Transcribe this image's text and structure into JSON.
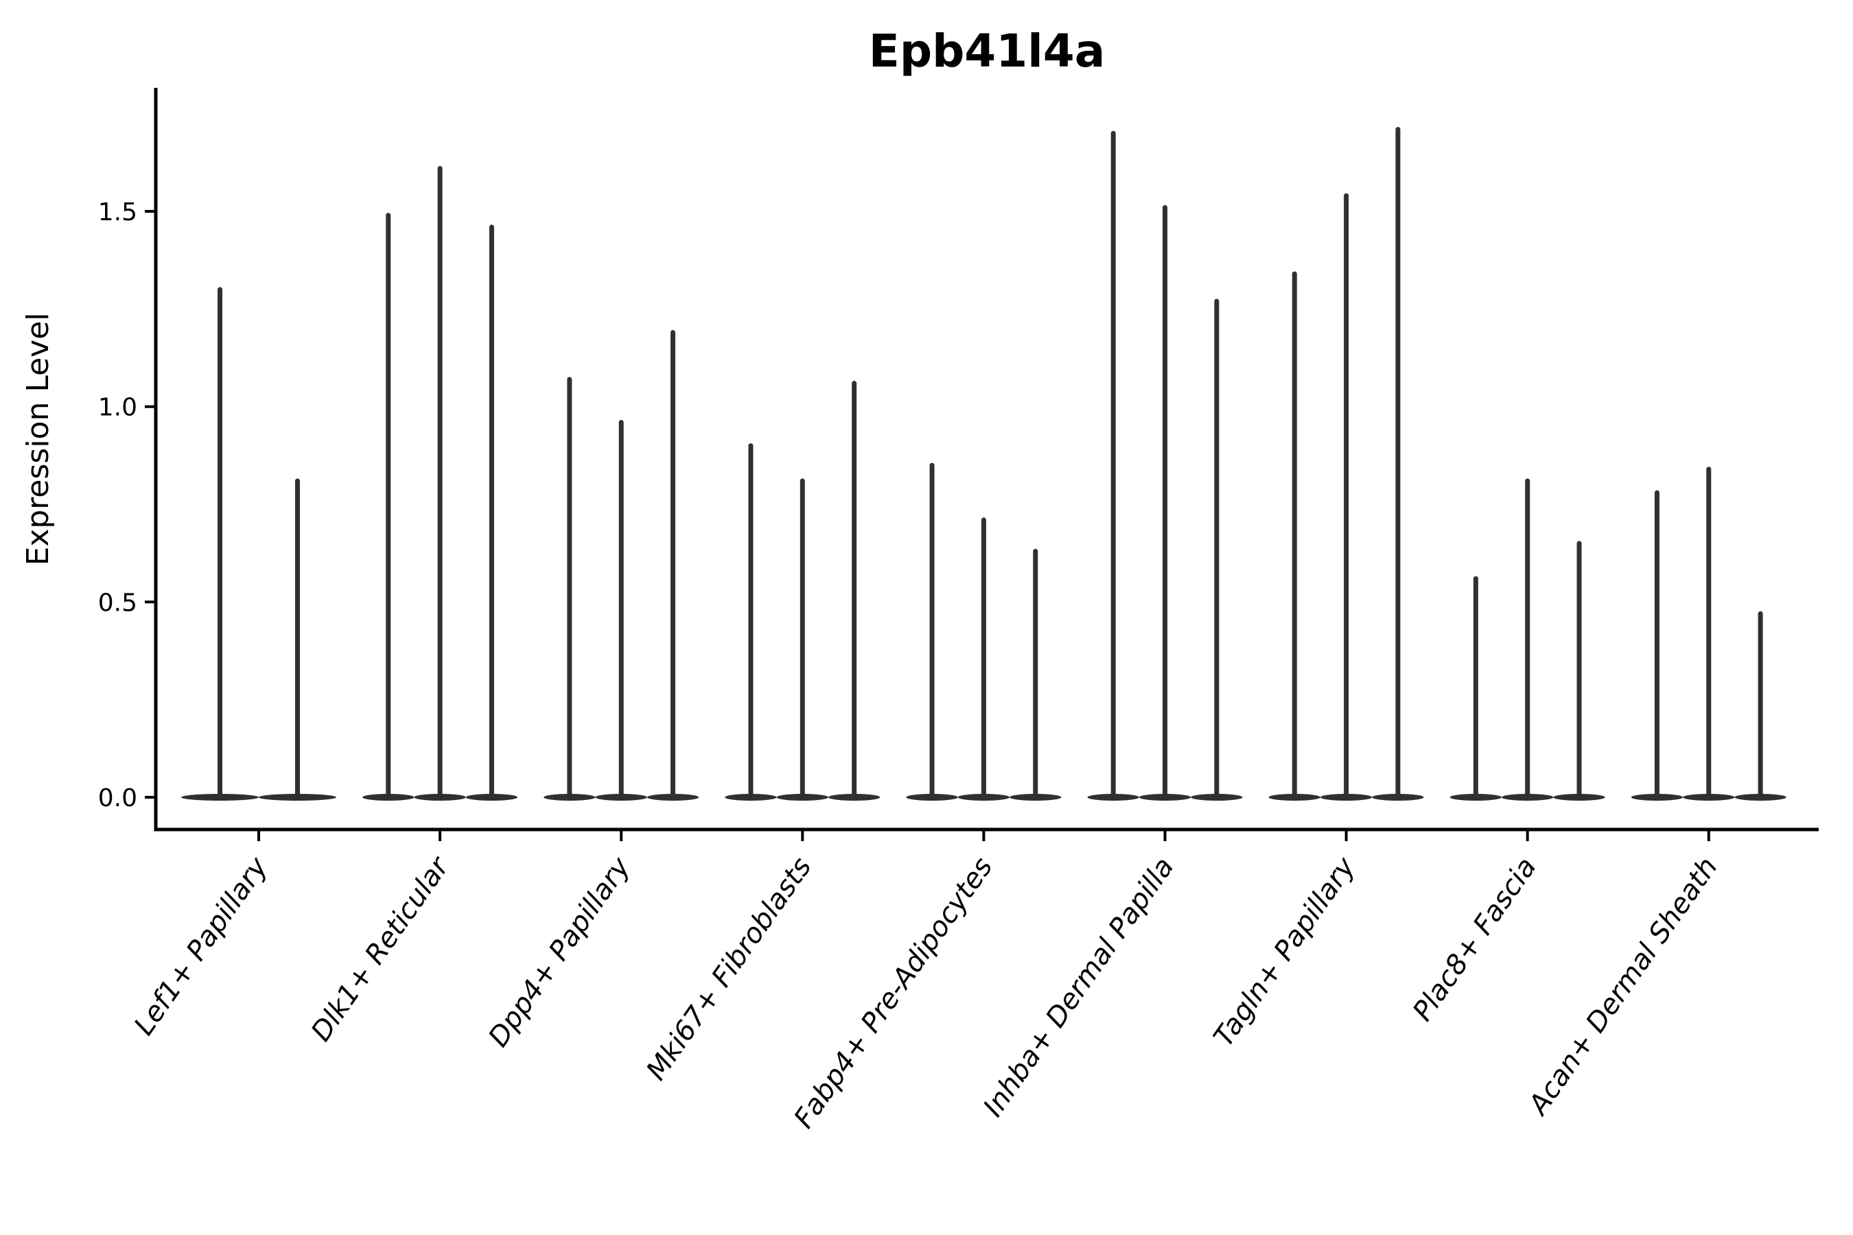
{
  "figure": {
    "background_color": "#ffffff",
    "axis_color": "#000000",
    "violin_color": "#303030"
  },
  "chart_data": {
    "type": "violin",
    "title": "Epb41l4a",
    "xlabel": "",
    "ylabel": "Expression Level",
    "yticks": [
      "0.0",
      "0.5",
      "1.0",
      "1.5"
    ],
    "ytick_values": [
      0.0,
      0.5,
      1.0,
      1.5
    ],
    "ylim": [
      -0.08,
      1.81
    ],
    "grid": false,
    "legend": "none",
    "violin_base_value": 0.0,
    "categories": [
      "Lef1+ Papillary",
      "Dlk1+ Reticular",
      "Dpp4+ Papillary",
      "Mki67+ Fibroblasts",
      "Fabp4+ Pre-Adipocytes",
      "Inhba+ Dermal Papilla",
      "Tagln+ Papillary",
      "Plac8+ Fascia",
      "Acan+ Dermal Sheath"
    ],
    "violin_maxima": [
      [
        1.3,
        0.81
      ],
      [
        1.49,
        1.61,
        1.46
      ],
      [
        1.07,
        0.96,
        1.19
      ],
      [
        0.9,
        0.81,
        1.06
      ],
      [
        0.85,
        0.71,
        0.63
      ],
      [
        1.7,
        1.51,
        1.27
      ],
      [
        1.34,
        1.54,
        1.71
      ],
      [
        0.56,
        0.81,
        0.65
      ],
      [
        0.78,
        0.84,
        0.47
      ]
    ]
  }
}
